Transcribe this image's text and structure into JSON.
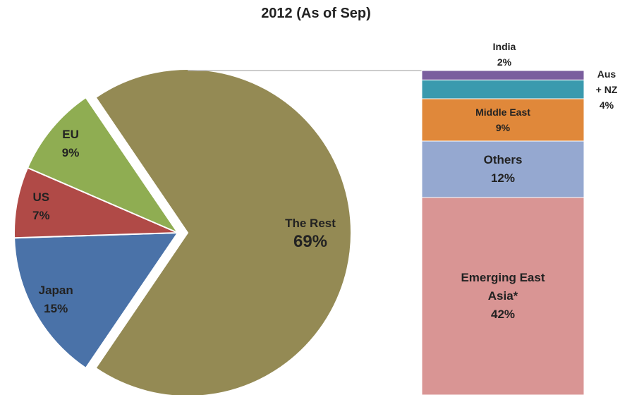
{
  "chart_data": {
    "type": "pie-of-bar",
    "title": "2012 (As of Sep)",
    "categories": [
      "Japan",
      "US",
      "EU",
      "The Rest"
    ],
    "values": [
      15,
      7,
      9,
      69
    ],
    "value_labels": [
      "15%",
      "7%",
      "9%",
      "69%"
    ],
    "colors": [
      "#4a72a8",
      "#b04a47",
      "#8fad52",
      "#948a54"
    ],
    "bar": {
      "categories": [
        "Emerging East Asia*",
        "Others",
        "Middle East",
        "Aus + NZ",
        "India"
      ],
      "values": [
        42,
        12,
        9,
        4,
        2
      ],
      "value_labels": [
        "42%",
        "12%",
        "9%",
        "4%",
        "2%"
      ],
      "colors": [
        "#d99594",
        "#95a8d0",
        "#e0883a",
        "#3a9aae",
        "#7a5e9e"
      ]
    }
  }
}
